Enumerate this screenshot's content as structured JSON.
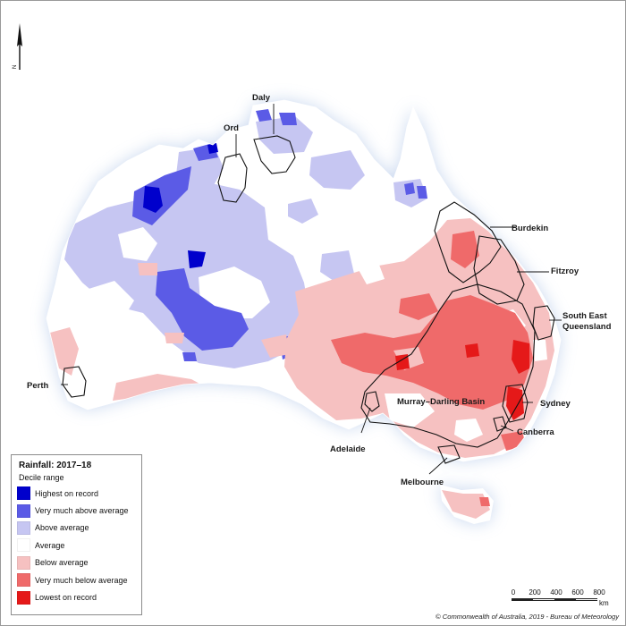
{
  "map": {
    "map_title": "Rainfall: 2017–18",
    "legend_subtitle": "Decile range",
    "legend": [
      {
        "label": "Highest on record",
        "color": "#0000cc"
      },
      {
        "label": "Very much above average",
        "color": "#5b5be6"
      },
      {
        "label": "Above average",
        "color": "#c6c6f2"
      },
      {
        "label": "Average",
        "color": "#ffffff"
      },
      {
        "label": "Below average",
        "color": "#f6c1c1"
      },
      {
        "label": "Very much below average",
        "color": "#ef6a6a"
      },
      {
        "label": "Lowest on record",
        "color": "#e51919"
      }
    ],
    "places": [
      "Daly",
      "Ord",
      "Burdekin",
      "Fitzroy",
      "South East",
      "Queensland",
      "Perth",
      "Murray–Darling Basin",
      "Sydney",
      "Canberra",
      "Adelaide",
      "Melbourne"
    ],
    "scale": {
      "ticks": [
        "0",
        "200",
        "400",
        "600",
        "800"
      ],
      "unit": "km"
    },
    "north_label": "N",
    "copyright": "© Commonwealth of Australia, 2019 - Bureau of Meteorology"
  }
}
